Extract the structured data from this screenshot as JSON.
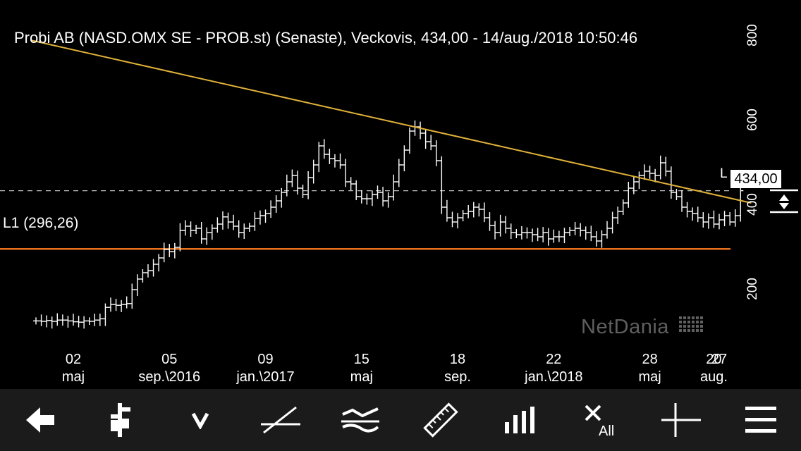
{
  "chart_data": {
    "type": "ohlc",
    "title": "Probi AB (NASD.OMX SE - PROB.st) (Senaste), Veckovis, 434,00 - 14/aug./2018 10:50:46",
    "last_price_label": "434,00",
    "level_label": "L1 (296,26)",
    "level_value": 296.26,
    "level_color": "#e8721c",
    "trendline_color": "#e0b23a",
    "trendline": {
      "from": [
        "2016-03-07",
        790
      ],
      "to": [
        "2018-10-08",
        405
      ]
    },
    "ylim": [
      90,
      850
    ],
    "y_ticks": [
      "200",
      "400",
      "600",
      "800"
    ],
    "y_tick_values": [
      200,
      400,
      600,
      800
    ],
    "x_ticks": [
      {
        "date": "2016-05-02",
        "line1": "02",
        "line2": "maj"
      },
      {
        "date": "2016-09-05",
        "line1": "05",
        "line2": "sep.\\2016"
      },
      {
        "date": "2017-01-09",
        "line1": "09",
        "line2": "jan.\\2017"
      },
      {
        "date": "2017-05-15",
        "line1": "15",
        "line2": "maj"
      },
      {
        "date": "2017-09-18",
        "line1": "18",
        "line2": "sep."
      },
      {
        "date": "2018-01-22",
        "line1": "22",
        "line2": "jan.\\2018"
      },
      {
        "date": "2018-05-28",
        "line1": "28",
        "line2": "maj"
      },
      {
        "date": "2018-08-20",
        "line1": "20",
        "line2": "aug."
      },
      {
        "date": "2018-08-27",
        "line1": "27",
        "line2": ""
      }
    ],
    "series": [
      {
        "frequency": "weekly",
        "first_week": "2016-03-14",
        "close": [
          126,
          125,
          127,
          125,
          128,
          128,
          126,
          124,
          123,
          126,
          125,
          128,
          131,
          158,
          165,
          163,
          165,
          167,
          200,
          225,
          240,
          245,
          260,
          275,
          295,
          290,
          300,
          340,
          350,
          340,
          345,
          320,
          335,
          345,
          355,
          372,
          360,
          350,
          335,
          345,
          350,
          368,
          375,
          380,
          395,
          410,
          430,
          455,
          470,
          440,
          425,
          465,
          495,
          540,
          520,
          510,
          505,
          495,
          455,
          450,
          420,
          415,
          415,
          425,
          430,
          410,
          420,
          455,
          495,
          530,
          575,
          585,
          570,
          550,
          540,
          505,
          395,
          370,
          360,
          370,
          380,
          385,
          395,
          390,
          370,
          352,
          335,
          360,
          345,
          335,
          330,
          335,
          335,
          330,
          325,
          335,
          320,
          325,
          325,
          335,
          340,
          345,
          340,
          335,
          325,
          315,
          330,
          345,
          370,
          385,
          405,
          440,
          455,
          470,
          480,
          475,
          470,
          500,
          480,
          430,
          420,
          395,
          385,
          380,
          370,
          360,
          370,
          355,
          365,
          375,
          360,
          375,
          434
        ],
        "high_low_spread": 24
      }
    ]
  },
  "watermark": "NetDania",
  "toolbar": {
    "buttons": [
      {
        "icon": "back-arrow-icon"
      },
      {
        "icon": "bar-type-icon"
      },
      {
        "icon": "v-icon"
      },
      {
        "icon": "trendline-tool-icon"
      },
      {
        "icon": "indicator-icon"
      },
      {
        "icon": "ruler-icon"
      },
      {
        "icon": "bar-chart-icon"
      },
      {
        "icon": "delete-all-icon",
        "label": "All"
      },
      {
        "icon": "crosshair-icon"
      },
      {
        "icon": "menu-icon"
      }
    ]
  }
}
